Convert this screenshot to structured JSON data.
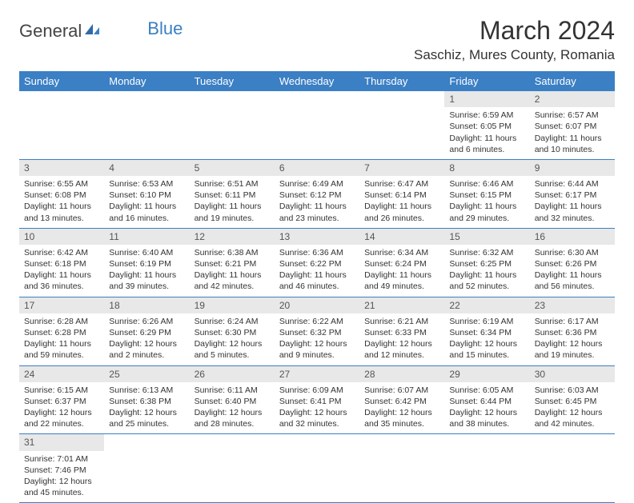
{
  "logo": {
    "text_left": "General",
    "text_right": "Blue"
  },
  "title": "March 2024",
  "location": "Saschiz, Mures County, Romania",
  "colors": {
    "header_bg": "#3b7fc4",
    "header_text": "#ffffff",
    "date_bg": "#e8e8e8",
    "row_border": "#3b7fc4",
    "body_text": "#333333"
  },
  "typography": {
    "title_fontsize": 32,
    "location_fontsize": 17,
    "day_header_fontsize": 13,
    "cell_fontsize": 10.5
  },
  "day_names": [
    "Sunday",
    "Monday",
    "Tuesday",
    "Wednesday",
    "Thursday",
    "Friday",
    "Saturday"
  ],
  "weeks": [
    [
      null,
      null,
      null,
      null,
      null,
      {
        "date": "1",
        "sunrise": "Sunrise: 6:59 AM",
        "sunset": "Sunset: 6:05 PM",
        "daylight": "Daylight: 11 hours and 6 minutes."
      },
      {
        "date": "2",
        "sunrise": "Sunrise: 6:57 AM",
        "sunset": "Sunset: 6:07 PM",
        "daylight": "Daylight: 11 hours and 10 minutes."
      }
    ],
    [
      {
        "date": "3",
        "sunrise": "Sunrise: 6:55 AM",
        "sunset": "Sunset: 6:08 PM",
        "daylight": "Daylight: 11 hours and 13 minutes."
      },
      {
        "date": "4",
        "sunrise": "Sunrise: 6:53 AM",
        "sunset": "Sunset: 6:10 PM",
        "daylight": "Daylight: 11 hours and 16 minutes."
      },
      {
        "date": "5",
        "sunrise": "Sunrise: 6:51 AM",
        "sunset": "Sunset: 6:11 PM",
        "daylight": "Daylight: 11 hours and 19 minutes."
      },
      {
        "date": "6",
        "sunrise": "Sunrise: 6:49 AM",
        "sunset": "Sunset: 6:12 PM",
        "daylight": "Daylight: 11 hours and 23 minutes."
      },
      {
        "date": "7",
        "sunrise": "Sunrise: 6:47 AM",
        "sunset": "Sunset: 6:14 PM",
        "daylight": "Daylight: 11 hours and 26 minutes."
      },
      {
        "date": "8",
        "sunrise": "Sunrise: 6:46 AM",
        "sunset": "Sunset: 6:15 PM",
        "daylight": "Daylight: 11 hours and 29 minutes."
      },
      {
        "date": "9",
        "sunrise": "Sunrise: 6:44 AM",
        "sunset": "Sunset: 6:17 PM",
        "daylight": "Daylight: 11 hours and 32 minutes."
      }
    ],
    [
      {
        "date": "10",
        "sunrise": "Sunrise: 6:42 AM",
        "sunset": "Sunset: 6:18 PM",
        "daylight": "Daylight: 11 hours and 36 minutes."
      },
      {
        "date": "11",
        "sunrise": "Sunrise: 6:40 AM",
        "sunset": "Sunset: 6:19 PM",
        "daylight": "Daylight: 11 hours and 39 minutes."
      },
      {
        "date": "12",
        "sunrise": "Sunrise: 6:38 AM",
        "sunset": "Sunset: 6:21 PM",
        "daylight": "Daylight: 11 hours and 42 minutes."
      },
      {
        "date": "13",
        "sunrise": "Sunrise: 6:36 AM",
        "sunset": "Sunset: 6:22 PM",
        "daylight": "Daylight: 11 hours and 46 minutes."
      },
      {
        "date": "14",
        "sunrise": "Sunrise: 6:34 AM",
        "sunset": "Sunset: 6:24 PM",
        "daylight": "Daylight: 11 hours and 49 minutes."
      },
      {
        "date": "15",
        "sunrise": "Sunrise: 6:32 AM",
        "sunset": "Sunset: 6:25 PM",
        "daylight": "Daylight: 11 hours and 52 minutes."
      },
      {
        "date": "16",
        "sunrise": "Sunrise: 6:30 AM",
        "sunset": "Sunset: 6:26 PM",
        "daylight": "Daylight: 11 hours and 56 minutes."
      }
    ],
    [
      {
        "date": "17",
        "sunrise": "Sunrise: 6:28 AM",
        "sunset": "Sunset: 6:28 PM",
        "daylight": "Daylight: 11 hours and 59 minutes."
      },
      {
        "date": "18",
        "sunrise": "Sunrise: 6:26 AM",
        "sunset": "Sunset: 6:29 PM",
        "daylight": "Daylight: 12 hours and 2 minutes."
      },
      {
        "date": "19",
        "sunrise": "Sunrise: 6:24 AM",
        "sunset": "Sunset: 6:30 PM",
        "daylight": "Daylight: 12 hours and 5 minutes."
      },
      {
        "date": "20",
        "sunrise": "Sunrise: 6:22 AM",
        "sunset": "Sunset: 6:32 PM",
        "daylight": "Daylight: 12 hours and 9 minutes."
      },
      {
        "date": "21",
        "sunrise": "Sunrise: 6:21 AM",
        "sunset": "Sunset: 6:33 PM",
        "daylight": "Daylight: 12 hours and 12 minutes."
      },
      {
        "date": "22",
        "sunrise": "Sunrise: 6:19 AM",
        "sunset": "Sunset: 6:34 PM",
        "daylight": "Daylight: 12 hours and 15 minutes."
      },
      {
        "date": "23",
        "sunrise": "Sunrise: 6:17 AM",
        "sunset": "Sunset: 6:36 PM",
        "daylight": "Daylight: 12 hours and 19 minutes."
      }
    ],
    [
      {
        "date": "24",
        "sunrise": "Sunrise: 6:15 AM",
        "sunset": "Sunset: 6:37 PM",
        "daylight": "Daylight: 12 hours and 22 minutes."
      },
      {
        "date": "25",
        "sunrise": "Sunrise: 6:13 AM",
        "sunset": "Sunset: 6:38 PM",
        "daylight": "Daylight: 12 hours and 25 minutes."
      },
      {
        "date": "26",
        "sunrise": "Sunrise: 6:11 AM",
        "sunset": "Sunset: 6:40 PM",
        "daylight": "Daylight: 12 hours and 28 minutes."
      },
      {
        "date": "27",
        "sunrise": "Sunrise: 6:09 AM",
        "sunset": "Sunset: 6:41 PM",
        "daylight": "Daylight: 12 hours and 32 minutes."
      },
      {
        "date": "28",
        "sunrise": "Sunrise: 6:07 AM",
        "sunset": "Sunset: 6:42 PM",
        "daylight": "Daylight: 12 hours and 35 minutes."
      },
      {
        "date": "29",
        "sunrise": "Sunrise: 6:05 AM",
        "sunset": "Sunset: 6:44 PM",
        "daylight": "Daylight: 12 hours and 38 minutes."
      },
      {
        "date": "30",
        "sunrise": "Sunrise: 6:03 AM",
        "sunset": "Sunset: 6:45 PM",
        "daylight": "Daylight: 12 hours and 42 minutes."
      }
    ],
    [
      {
        "date": "31",
        "sunrise": "Sunrise: 7:01 AM",
        "sunset": "Sunset: 7:46 PM",
        "daylight": "Daylight: 12 hours and 45 minutes."
      },
      null,
      null,
      null,
      null,
      null,
      null
    ]
  ]
}
